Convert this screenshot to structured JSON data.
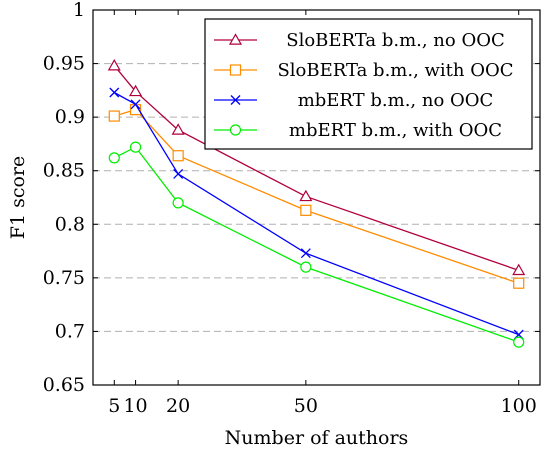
{
  "chart_data": {
    "type": "line",
    "xlabel": "Number of authors",
    "ylabel": "F1 score",
    "x": [
      5,
      10,
      20,
      50,
      100
    ],
    "x_ticks": [
      5,
      10,
      20,
      50,
      100
    ],
    "y_ticks": [
      0.65,
      0.7,
      0.75,
      0.8,
      0.85,
      0.9,
      0.95,
      1
    ],
    "y_tick_labels": [
      "0.65",
      "0.7",
      "0.75",
      "0.8",
      "0.85",
      "0.9",
      "0.95",
      "1"
    ],
    "xlim": [
      0,
      105
    ],
    "ylim": [
      0.65,
      1
    ],
    "grid": "horizontal dashed",
    "legend_position": "top-right",
    "series": [
      {
        "name": "SloBERTa b.m., no OOC",
        "values": [
          0.948,
          0.924,
          0.888,
          0.826,
          0.757
        ],
        "color": "#b0003a",
        "marker": "triangle"
      },
      {
        "name": "SloBERTa b.m., with OOC",
        "values": [
          0.901,
          0.907,
          0.864,
          0.813,
          0.745
        ],
        "color": "#ff8c00",
        "marker": "square"
      },
      {
        "name": "mbERT b.m., no OOC",
        "values": [
          0.923,
          0.912,
          0.847,
          0.773,
          0.697
        ],
        "color": "#0000ff",
        "marker": "cross"
      },
      {
        "name": "mbERT b.m., with OOC",
        "values": [
          0.862,
          0.872,
          0.82,
          0.76,
          0.69
        ],
        "color": "#00ee00",
        "marker": "circle"
      }
    ]
  }
}
